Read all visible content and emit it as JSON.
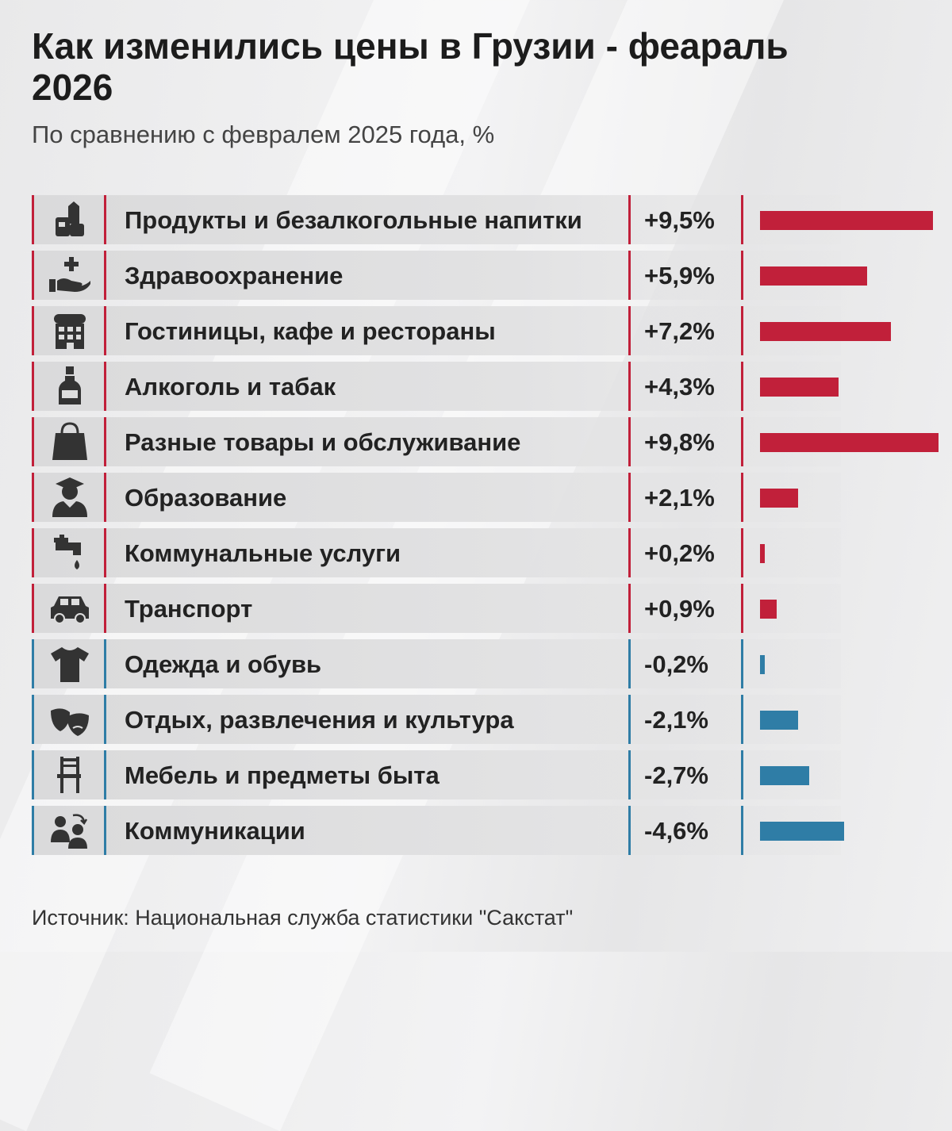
{
  "title": "Как изменились цены в Грузии - феараль 2026",
  "subtitle": "По сравнению с февралем 2025 года, %",
  "source": "Источник: Национальная служба статистики \"Сакстат\"",
  "colors": {
    "positive": "#c1203a",
    "negative": "#2f7da6"
  },
  "chart_data": {
    "type": "bar",
    "orientation": "horizontal",
    "categories": [
      "Продукты и безалкогольные напитки",
      "Здравоохранение",
      "Гостиницы, кафе и рестораны",
      "Алкоголь и табак",
      "Разные товары и обслуживание",
      "Образование",
      "Коммунальные услуги",
      "Транспорт",
      "Одежда и обувь",
      "Отдых, развлечения и культура",
      "Мебель и предметы быта",
      "Коммуникации"
    ],
    "values": [
      9.5,
      5.9,
      7.2,
      4.3,
      9.8,
      2.1,
      0.2,
      0.9,
      -0.2,
      -2.1,
      -2.7,
      -4.6
    ],
    "value_labels": [
      "+9,5%",
      "+5,9%",
      "+7,2%",
      "+4,3%",
      "+9,8%",
      "+2,1%",
      "+0,2%",
      "+0,9%",
      "-0,2%",
      "-2,1%",
      "-2,7%",
      "-4,6%"
    ],
    "icons": [
      "grocery-icon",
      "healthcare-icon",
      "hotel-icon",
      "bottle-icon",
      "shopping-bag-icon",
      "graduate-icon",
      "faucet-icon",
      "car-icon",
      "tshirt-icon",
      "theater-masks-icon",
      "chair-icon",
      "communication-icon"
    ],
    "ylim": [
      0,
      9.8
    ]
  }
}
